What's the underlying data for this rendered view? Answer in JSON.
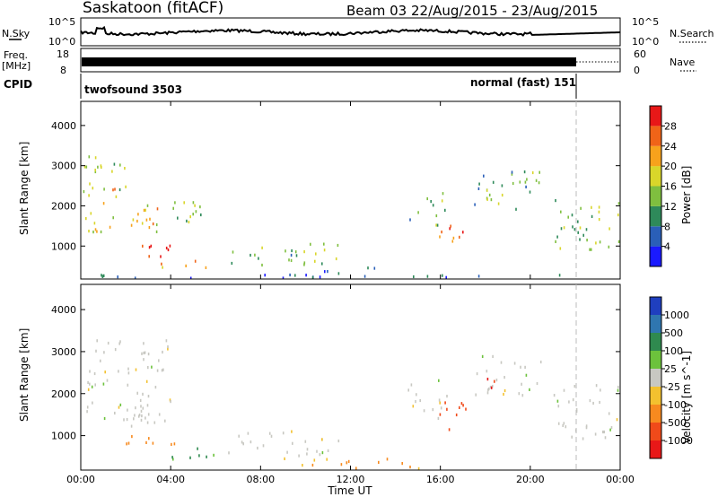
{
  "header": {
    "title": "Saskatoon (fitACF)",
    "beam": "Beam 03",
    "date_range": "22/Aug/2015 - 23/Aug/2015"
  },
  "panels": {
    "nsky_label": "N.Sky",
    "nsearch_label": "N.Search",
    "freq_label_1": "Freq.",
    "freq_label_2": "[MHz]",
    "nave_label": "Nave",
    "cpid_label": "CPID",
    "nsky_ticks": [
      "10^5",
      "10^0"
    ],
    "nsearch_ticks": [
      "10^5",
      "10^0"
    ],
    "freq_ticks": [
      "18",
      "8"
    ],
    "nave_ticks": [
      "60",
      "0"
    ],
    "cpid_modes": [
      {
        "name": "twofsound 3503",
        "start_hour": 0
      },
      {
        "name": "normal (fast) 151",
        "start_hour": 21.9
      }
    ]
  },
  "chart_data": [
    {
      "type": "heatmap",
      "name": "power",
      "xlabel": "Time UT",
      "ylabel": "Slant Range [km]",
      "x_ticks": [
        "00:00",
        "04:00",
        "08:00",
        "12:00",
        "16:00",
        "20:00",
        "00:00"
      ],
      "xlim_hours": [
        0,
        24
      ],
      "y_ticks": [
        1000,
        2000,
        3000,
        4000
      ],
      "ylim": [
        180,
        4600
      ],
      "colorbar_label": "Power [dB]",
      "colorbar_ticks": [
        4,
        8,
        12,
        16,
        20,
        24,
        28
      ],
      "colorbar_range": [
        0,
        30
      ],
      "colorbar_colors": [
        "#1a1aff",
        "#2a5fb8",
        "#2e8a5a",
        "#7fbf3f",
        "#d9d62a",
        "#f7a21c",
        "#f06418",
        "#e81818"
      ],
      "regions": [
        {
          "t": [
            0.1,
            2.4
          ],
          "r": [
            2200,
            3300
          ],
          "value": 14
        },
        {
          "t": [
            0.1,
            3.5
          ],
          "r": [
            1300,
            2100
          ],
          "value": 18
        },
        {
          "t": [
            1.5,
            3.2
          ],
          "r": [
            1500,
            1700
          ],
          "value": 24
        },
        {
          "t": [
            0.8,
            1.6
          ],
          "r": [
            2200,
            2450
          ],
          "value": 26
        },
        {
          "t": [
            2.0,
            4.2
          ],
          "r": [
            600,
            1050
          ],
          "value": 27
        },
        {
          "t": [
            3.5,
            6.0
          ],
          "r": [
            400,
            650
          ],
          "value": 20
        },
        {
          "t": [
            4.0,
            5.7
          ],
          "r": [
            1500,
            2400
          ],
          "value": 13
        },
        {
          "t": [
            6.5,
            11.5
          ],
          "r": [
            500,
            1100
          ],
          "value": 12
        },
        {
          "t": [
            9.0,
            13.5
          ],
          "r": [
            200,
            450
          ],
          "value": 7
        },
        {
          "t": [
            14.5,
            16.2
          ],
          "r": [
            1500,
            2300
          ],
          "value": 12
        },
        {
          "t": [
            15.8,
            17.2
          ],
          "r": [
            1100,
            1800
          ],
          "value": 22
        },
        {
          "t": [
            17.5,
            20.5
          ],
          "r": [
            1900,
            2900
          ],
          "value": 11
        },
        {
          "t": [
            18.0,
            18.8
          ],
          "r": [
            2000,
            2500
          ],
          "value": 17
        },
        {
          "t": [
            21.0,
            24.0
          ],
          "r": [
            900,
            2200
          ],
          "value": 13
        },
        {
          "t": [
            0.0,
            24.0
          ],
          "r": [
            190,
            280
          ],
          "value": 6
        }
      ]
    },
    {
      "type": "heatmap",
      "name": "velocity",
      "xlabel": "Time UT",
      "ylabel": "Slant Range [km]",
      "x_ticks": [
        "00:00",
        "04:00",
        "08:00",
        "12:00",
        "16:00",
        "20:00",
        "00:00"
      ],
      "xlim_hours": [
        0,
        24
      ],
      "y_ticks": [
        1000,
        2000,
        3000,
        4000
      ],
      "ylim": [
        180,
        4600
      ],
      "colorbar_label": "Velocity [m s^-1]",
      "colorbar_ticks": [
        "1000",
        "500",
        "100",
        "25",
        "-25",
        "-100",
        "-500",
        "-1000"
      ],
      "colorbar_colors": [
        "#1f3fbf",
        "#2f76b0",
        "#2f8a4f",
        "#6cc23c",
        "#c8c8c2",
        "#f3c12f",
        "#f78a1f",
        "#f04a1a",
        "#e81818"
      ],
      "regions": [
        {
          "t": [
            0.1,
            4.0
          ],
          "r": [
            1300,
            3300
          ],
          "value": 0
        },
        {
          "t": [
            1.5,
            3.8
          ],
          "r": [
            1200,
            1700
          ],
          "value": 0
        },
        {
          "t": [
            2.0,
            4.2
          ],
          "r": [
            600,
            1050
          ],
          "value": -150
        },
        {
          "t": [
            3.5,
            6.2
          ],
          "r": [
            400,
            700
          ],
          "value": 60
        },
        {
          "t": [
            6.5,
            11.5
          ],
          "r": [
            500,
            1100
          ],
          "value": 0
        },
        {
          "t": [
            9.0,
            15.5
          ],
          "r": [
            200,
            450
          ],
          "value": -110
        },
        {
          "t": [
            14.5,
            16.4
          ],
          "r": [
            1400,
            2300
          ],
          "value": 0
        },
        {
          "t": [
            15.8,
            17.2
          ],
          "r": [
            1000,
            1800
          ],
          "value": -600
        },
        {
          "t": [
            17.5,
            20.5
          ],
          "r": [
            1900,
            2900
          ],
          "value": 0
        },
        {
          "t": [
            18.0,
            18.9
          ],
          "r": [
            2000,
            2400
          ],
          "value": -700
        },
        {
          "t": [
            21.0,
            24.0
          ],
          "r": [
            900,
            2200
          ],
          "value": 0
        }
      ]
    }
  ]
}
